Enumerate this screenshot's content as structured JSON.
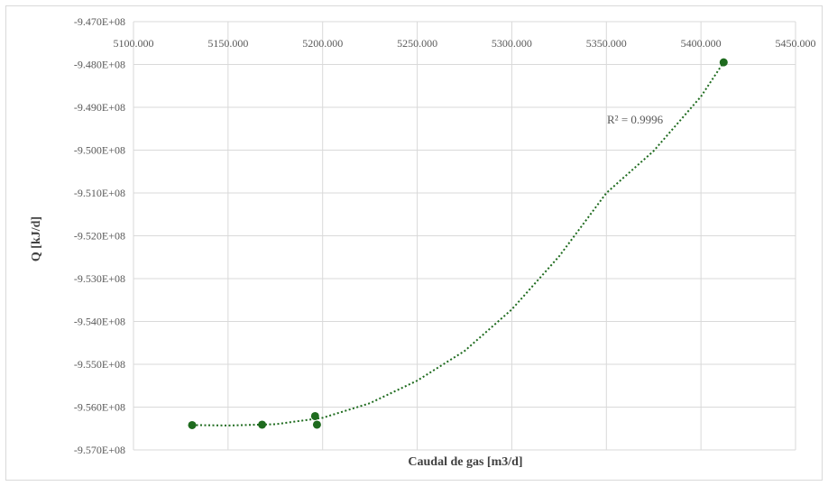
{
  "chart_data": {
    "type": "scatter",
    "title": "",
    "xlabel": "Caudal de gas [m3/d]",
    "ylabel": "Q [kJ/d]",
    "xlim": [
      5100,
      5450
    ],
    "ylim": [
      -957000000,
      -947000000
    ],
    "x_ticks": [
      5100,
      5150,
      5200,
      5250,
      5300,
      5350,
      5400,
      5450
    ],
    "x_tick_labels": [
      "5100.000",
      "5150.000",
      "5200.000",
      "5250.000",
      "5300.000",
      "5350.000",
      "5400.000",
      "5450.000"
    ],
    "y_ticks": [
      -947000000,
      -948000000,
      -949000000,
      -950000000,
      -951000000,
      -952000000,
      -953000000,
      -954000000,
      -955000000,
      -956000000,
      -957000000
    ],
    "y_tick_labels": [
      "-9.470E+08",
      "-9.480E+08",
      "-9.490E+08",
      "-9.500E+08",
      "-9.510E+08",
      "-9.520E+08",
      "-9.530E+08",
      "-9.540E+08",
      "-9.550E+08",
      "-9.560E+08",
      "-9.570E+08"
    ],
    "x_axis_position": "top",
    "grid": true,
    "legend": "none",
    "series": [
      {
        "marker_color": "#1e6b1e",
        "points": [
          {
            "x": 5131,
            "y": -956420000
          },
          {
            "x": 5168,
            "y": -956410000
          },
          {
            "x": 5196,
            "y": -956210000
          },
          {
            "x": 5197,
            "y": -956410000
          },
          {
            "x": 5412,
            "y": -947950000
          }
        ]
      }
    ],
    "trendline": {
      "type": "polynomial",
      "style": "dotted",
      "color": "#1e6b1e",
      "label": "R² = 0.9996",
      "points": [
        {
          "x": 5131,
          "y": -956420000
        },
        {
          "x": 5150,
          "y": -956430000
        },
        {
          "x": 5175,
          "y": -956400000
        },
        {
          "x": 5200,
          "y": -956250000
        },
        {
          "x": 5225,
          "y": -955910000
        },
        {
          "x": 5250,
          "y": -955380000
        },
        {
          "x": 5275,
          "y": -954690000
        },
        {
          "x": 5300,
          "y": -953720000
        },
        {
          "x": 5325,
          "y": -952480000
        },
        {
          "x": 5350,
          "y": -951000000
        },
        {
          "x": 5375,
          "y": -950020000
        },
        {
          "x": 5400,
          "y": -948750000
        },
        {
          "x": 5412,
          "y": -947950000
        }
      ]
    }
  }
}
